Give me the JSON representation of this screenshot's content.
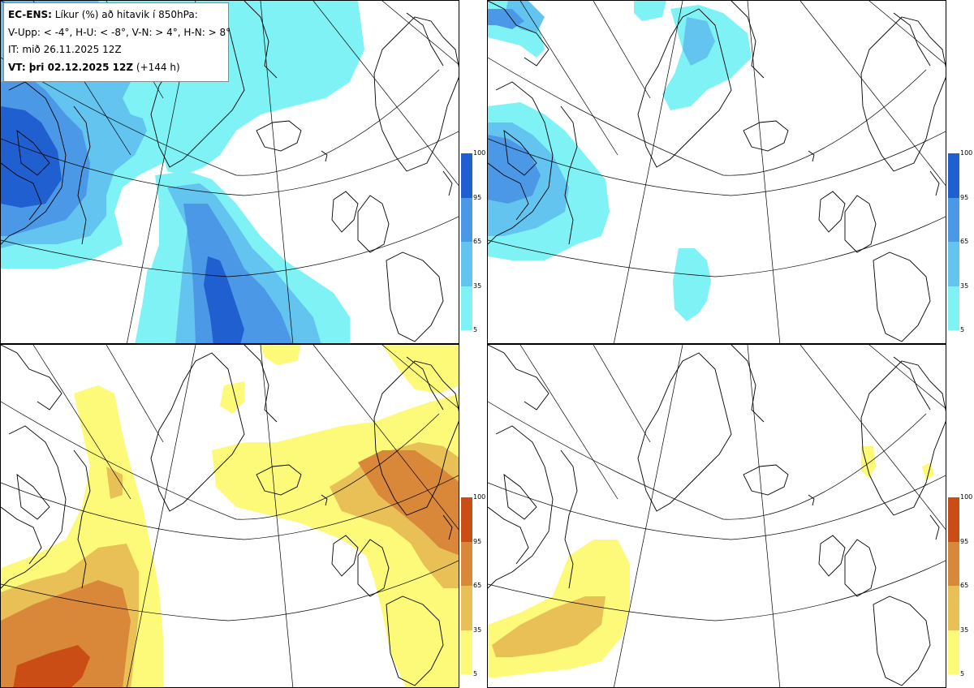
{
  "title": {
    "line1_bold": "EC-ENS:",
    "line1_rest": " Líkur (%) að hitavik í 850hPa:",
    "line2": "V-Upp: < -4°, H-U: < -8°, V-N: > 4°, H-N: > 8°",
    "line3": "IT: mið 26.11.2025 12Z",
    "line4_bold": "VT: þri 02.12.2025 12Z",
    "line4_rest": " (+144 h)"
  },
  "panels": [
    {
      "id": "V-Upp",
      "theme": "cold",
      "description": "probability temperature anomaly < -4"
    },
    {
      "id": "H-U",
      "theme": "cold",
      "description": "probability temperature anomaly < -8"
    },
    {
      "id": "V-N",
      "theme": "warm",
      "description": "probability temperature anomaly > 4"
    },
    {
      "id": "H-N",
      "theme": "warm",
      "description": "probability temperature anomaly > 8"
    }
  ],
  "colorbar_cold": {
    "ticks": [
      "100",
      "95",
      "65",
      "35",
      "5"
    ],
    "colors": [
      "#1f5fcf",
      "#4b98e6",
      "#62c4ef",
      "#7ff2f5"
    ]
  },
  "colorbar_warm": {
    "ticks": [
      "100",
      "95",
      "65",
      "35",
      "5"
    ],
    "colors": [
      "#c94d14",
      "#d9883a",
      "#e8c056",
      "#fdfa7a"
    ]
  }
}
